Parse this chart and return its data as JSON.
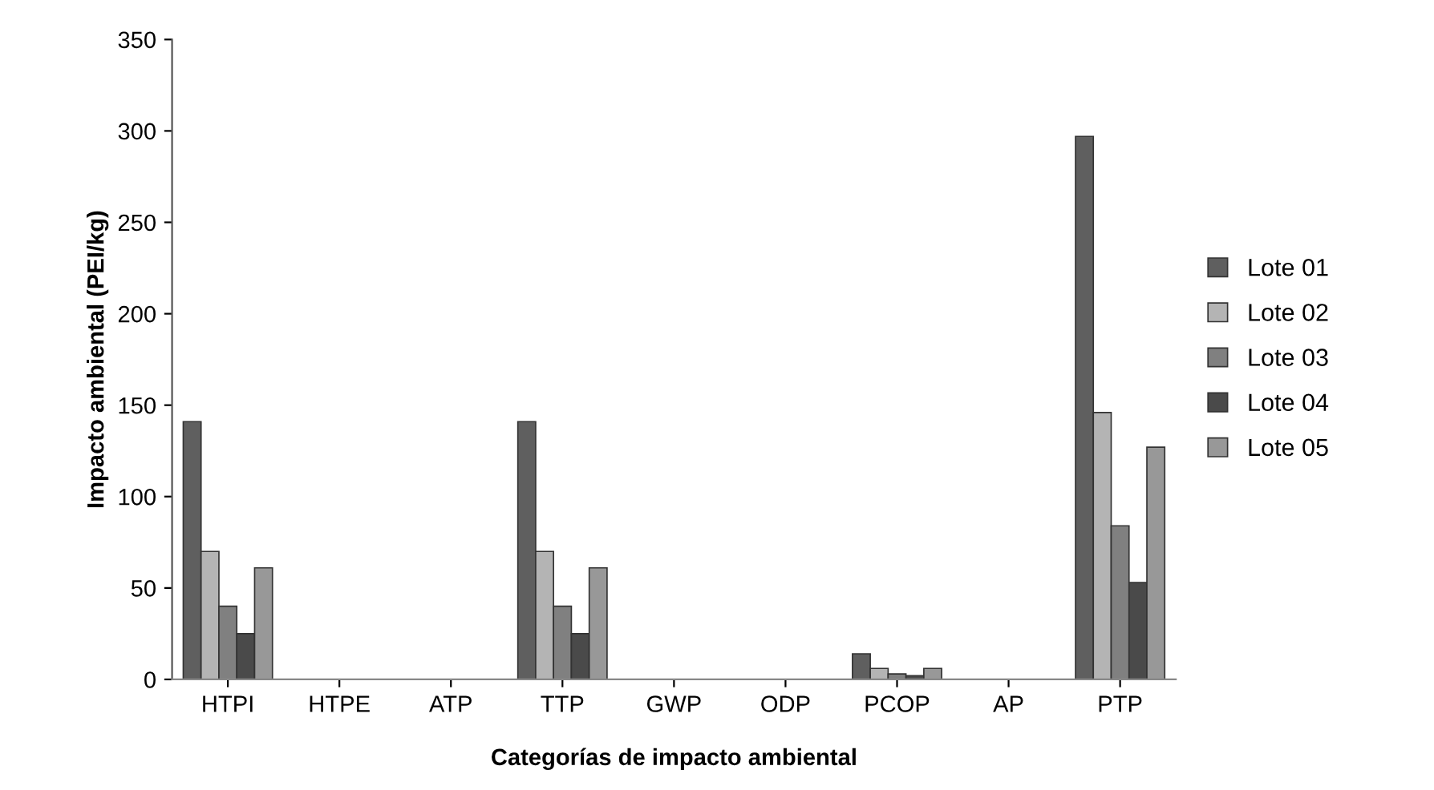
{
  "chart_data": {
    "type": "bar",
    "xlabel": "Categorías de impacto ambiental",
    "ylabel": "Impacto ambiental (PEI/kg)",
    "categories": [
      "HTPI",
      "HTPE",
      "ATP",
      "TTP",
      "GWP",
      "ODP",
      "PCOP",
      "AP",
      "PTP"
    ],
    "series": [
      {
        "name": "Lote 01",
        "color": "#5f5f5f",
        "values": [
          141,
          0,
          0,
          141,
          0,
          0,
          14,
          0,
          297
        ]
      },
      {
        "name": "Lote 02",
        "color": "#b4b4b4",
        "values": [
          70,
          0,
          0,
          70,
          0,
          0,
          6,
          0,
          146
        ]
      },
      {
        "name": "Lote 03",
        "color": "#808080",
        "values": [
          40,
          0,
          0,
          40,
          0,
          0,
          3,
          0,
          84
        ]
      },
      {
        "name": "Lote 04",
        "color": "#4a4a4a",
        "values": [
          25,
          0,
          0,
          25,
          0,
          0,
          2,
          0,
          53
        ]
      },
      {
        "name": "Lote 05",
        "color": "#989898",
        "values": [
          61,
          0,
          0,
          61,
          0,
          0,
          6,
          0,
          127
        ]
      }
    ],
    "ylim": [
      0,
      350
    ],
    "yticks": [
      0,
      50,
      100,
      150,
      200,
      250,
      300,
      350
    ],
    "grid": false,
    "legend": "right"
  }
}
